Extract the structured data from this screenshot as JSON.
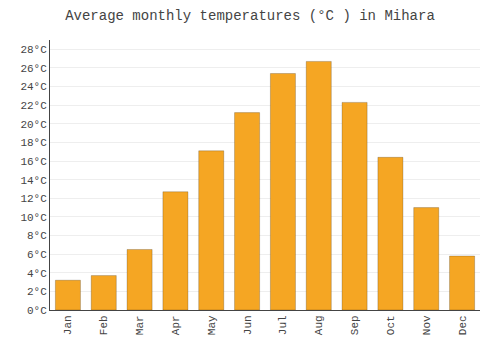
{
  "chart_data": {
    "type": "bar",
    "title": "Average monthly temperatures (°C ) in Mihara",
    "categories": [
      "Jan",
      "Feb",
      "Mar",
      "Apr",
      "May",
      "Jun",
      "Jul",
      "Aug",
      "Sep",
      "Oct",
      "Nov",
      "Dec"
    ],
    "values": [
      3.2,
      3.7,
      6.5,
      12.7,
      17.1,
      21.2,
      25.4,
      26.7,
      22.3,
      16.4,
      11.0,
      5.8
    ],
    "color": "#F5A623",
    "ylim": [
      0,
      29
    ],
    "yticks": [
      {
        "value": 0,
        "label": "0°C"
      },
      {
        "value": 2,
        "label": "2°C"
      },
      {
        "value": 4,
        "label": "4°C"
      },
      {
        "value": 6,
        "label": "6°C"
      },
      {
        "value": 8,
        "label": "8°C"
      },
      {
        "value": 10,
        "label": "10°C"
      },
      {
        "value": 12,
        "label": "12°C"
      },
      {
        "value": 14,
        "label": "14°C"
      },
      {
        "value": 16,
        "label": "16°C"
      },
      {
        "value": 18,
        "label": "18°C"
      },
      {
        "value": 20,
        "label": "20°C"
      },
      {
        "value": 22,
        "label": "22°C"
      },
      {
        "value": 24,
        "label": "24°C"
      },
      {
        "value": 26,
        "label": "26°C"
      },
      {
        "value": 28,
        "label": "28°C"
      }
    ],
    "grid": true
  }
}
